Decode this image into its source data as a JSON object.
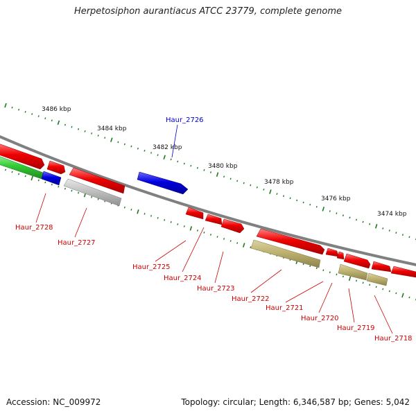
{
  "title": "Herpetosiphon aurantiacus ATCC 23779, complete genome",
  "footer": {
    "accession": "Accession: NC_009972",
    "summary": "Topology: circular; Length: 6,346,587 bp; Genes: 5,042"
  },
  "colors": {
    "background": "#ffffff",
    "backbone": "#808080",
    "tick": "#1a7a1a",
    "highlight_label": "#0000cc",
    "gene_label": "#cc0000",
    "gene_red": "#ee0000",
    "gene_blue": "#0000dd",
    "gene_green": "#33cc33",
    "gene_gray": "#c0c0c0",
    "gene_khaki": "#bdb270"
  },
  "scale_labels": [
    "3486 kbp",
    "3484 kbp",
    "3482 kbp",
    "3480 kbp",
    "3478 kbp",
    "3476 kbp",
    "3474 kbp"
  ],
  "genes": [
    {
      "label": "Haur_2728",
      "strand": "-",
      "color": "blue",
      "highlight": false
    },
    {
      "label": "Haur_2727",
      "strand": "-",
      "color": "gray",
      "highlight": false
    },
    {
      "label": "Haur_2726",
      "strand": "+",
      "color": "blue",
      "highlight": true
    },
    {
      "label": "Haur_2725",
      "strand": "+",
      "color": "red",
      "highlight": false
    },
    {
      "label": "Haur_2724",
      "strand": "+",
      "color": "red",
      "highlight": false
    },
    {
      "label": "Haur_2723",
      "strand": "+",
      "color": "red",
      "highlight": false
    },
    {
      "label": "Haur_2722",
      "strand": "-",
      "color": "khaki",
      "highlight": false
    },
    {
      "label": "Haur_2721",
      "strand": "+",
      "color": "red",
      "highlight": false
    },
    {
      "label": "Haur_2720",
      "strand": "-",
      "color": "khaki",
      "highlight": false
    },
    {
      "label": "Haur_2719",
      "strand": "+",
      "color": "red",
      "highlight": false
    },
    {
      "label": "Haur_2718",
      "strand": "+",
      "color": "red",
      "highlight": false
    }
  ]
}
